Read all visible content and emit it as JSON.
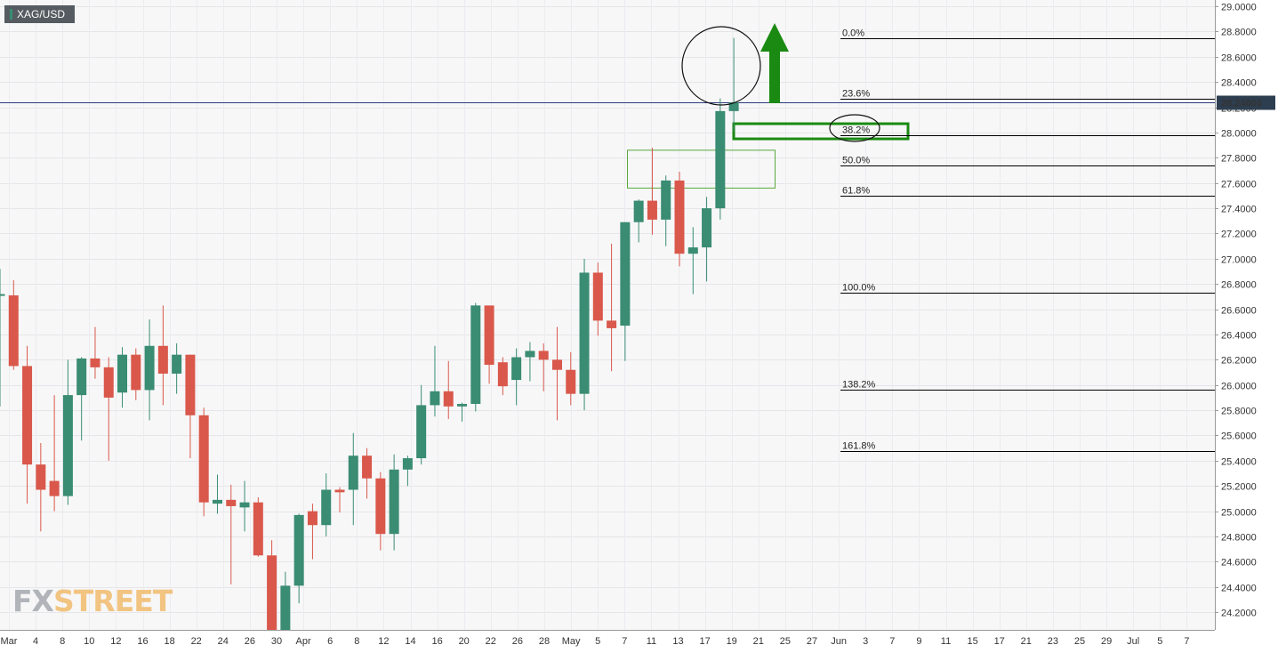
{
  "symbol": "XAG/USD",
  "last_price_label": "28.24000",
  "logo": {
    "part1": "FX",
    "part2": "STREET"
  },
  "colors": {
    "up": "#3a8c72",
    "down": "#d9584b",
    "fib_line": "#000000",
    "price_line": "#2c3c7a",
    "price_label_bg": "#2d3e50",
    "annotation_green": "#1a8a12",
    "zone_green": "#5aa83c"
  },
  "chart_data": {
    "type": "candlestick",
    "ylim": [
      24.06,
      29.05
    ],
    "y_ticks": [
      "29.0000",
      "28.8000",
      "28.6000",
      "28.4000",
      "28.2000",
      "28.0000",
      "27.8000",
      "27.6000",
      "27.4000",
      "27.2000",
      "27.0000",
      "26.8000",
      "26.6000",
      "26.4000",
      "26.2000",
      "26.0000",
      "25.8000",
      "25.6000",
      "25.4000",
      "25.2000",
      "25.0000",
      "24.8000",
      "24.6000",
      "24.4000",
      "24.2000"
    ],
    "x_ticks": [
      "Mar",
      "4",
      "8",
      "10",
      "12",
      "16",
      "18",
      "22",
      "24",
      "26",
      "30",
      "Apr",
      "6",
      "8",
      "12",
      "14",
      "16",
      "20",
      "22",
      "26",
      "28",
      "May",
      "5",
      "7",
      "11",
      "13",
      "17",
      "19",
      "21",
      "25",
      "27",
      "Jun",
      "3",
      "7",
      "9",
      "11",
      "15",
      "17",
      "21",
      "23",
      "25",
      "29",
      "Jul",
      "5",
      "7"
    ],
    "fib_levels": [
      {
        "label": "0.0%",
        "price": 28.75
      },
      {
        "label": "23.6%",
        "price": 28.27
      },
      {
        "label": "38.2%",
        "price": 27.98
      },
      {
        "label": "50.0%",
        "price": 27.74
      },
      {
        "label": "61.8%",
        "price": 27.5
      },
      {
        "label": "100.0%",
        "price": 26.73
      },
      {
        "label": "138.2%",
        "price": 25.96
      },
      {
        "label": "161.8%",
        "price": 25.48
      }
    ],
    "last_price": 28.24,
    "candles": [
      {
        "o": 26.72,
        "h": 26.92,
        "l": 25.83,
        "c": 26.72
      },
      {
        "o": 26.71,
        "h": 26.83,
        "l": 26.12,
        "c": 26.15
      },
      {
        "o": 26.15,
        "h": 26.31,
        "l": 25.06,
        "c": 25.37
      },
      {
        "o": 25.37,
        "h": 25.54,
        "l": 24.84,
        "c": 25.17
      },
      {
        "o": 25.24,
        "h": 25.92,
        "l": 25.0,
        "c": 25.12
      },
      {
        "o": 25.12,
        "h": 26.2,
        "l": 25.05,
        "c": 25.92
      },
      {
        "o": 25.92,
        "h": 26.22,
        "l": 25.56,
        "c": 26.21
      },
      {
        "o": 26.21,
        "h": 26.46,
        "l": 26.05,
        "c": 26.14
      },
      {
        "o": 26.14,
        "h": 26.22,
        "l": 25.4,
        "c": 25.9
      },
      {
        "o": 25.94,
        "h": 26.3,
        "l": 25.82,
        "c": 26.24
      },
      {
        "o": 26.24,
        "h": 26.29,
        "l": 25.88,
        "c": 25.96
      },
      {
        "o": 25.96,
        "h": 26.52,
        "l": 25.72,
        "c": 26.31
      },
      {
        "o": 26.31,
        "h": 26.63,
        "l": 25.84,
        "c": 26.09
      },
      {
        "o": 26.09,
        "h": 26.33,
        "l": 25.93,
        "c": 26.24
      },
      {
        "o": 26.24,
        "h": 26.24,
        "l": 25.42,
        "c": 25.76
      },
      {
        "o": 25.76,
        "h": 25.82,
        "l": 24.96,
        "c": 25.07
      },
      {
        "o": 25.06,
        "h": 25.29,
        "l": 24.98,
        "c": 25.09
      },
      {
        "o": 25.09,
        "h": 25.21,
        "l": 24.42,
        "c": 25.04
      },
      {
        "o": 25.03,
        "h": 25.24,
        "l": 24.84,
        "c": 25.07
      },
      {
        "o": 25.07,
        "h": 25.11,
        "l": 24.64,
        "c": 24.65
      },
      {
        "o": 24.65,
        "h": 24.77,
        "l": 24.0,
        "c": 24.0
      },
      {
        "o": 24.0,
        "h": 24.52,
        "l": 24.0,
        "c": 24.41
      },
      {
        "o": 24.41,
        "h": 24.98,
        "l": 24.27,
        "c": 24.97
      },
      {
        "o": 25.0,
        "h": 25.06,
        "l": 24.62,
        "c": 24.89
      },
      {
        "o": 24.89,
        "h": 25.3,
        "l": 24.8,
        "c": 25.17
      },
      {
        "o": 25.17,
        "h": 25.19,
        "l": 24.99,
        "c": 25.15
      },
      {
        "o": 25.17,
        "h": 25.62,
        "l": 24.89,
        "c": 25.44
      },
      {
        "o": 25.44,
        "h": 25.5,
        "l": 25.1,
        "c": 25.26
      },
      {
        "o": 25.26,
        "h": 25.31,
        "l": 24.69,
        "c": 24.82
      },
      {
        "o": 24.82,
        "h": 25.45,
        "l": 24.69,
        "c": 25.33
      },
      {
        "o": 25.33,
        "h": 25.44,
        "l": 25.2,
        "c": 25.42
      },
      {
        "o": 25.42,
        "h": 26.0,
        "l": 25.37,
        "c": 25.84
      },
      {
        "o": 25.84,
        "h": 26.31,
        "l": 25.75,
        "c": 25.95
      },
      {
        "o": 25.95,
        "h": 26.19,
        "l": 25.73,
        "c": 25.83
      },
      {
        "o": 25.83,
        "h": 25.86,
        "l": 25.71,
        "c": 25.85
      },
      {
        "o": 25.85,
        "h": 26.65,
        "l": 25.79,
        "c": 26.63
      },
      {
        "o": 26.63,
        "h": 26.6,
        "l": 26.01,
        "c": 26.16
      },
      {
        "o": 26.18,
        "h": 26.22,
        "l": 25.92,
        "c": 25.99
      },
      {
        "o": 26.04,
        "h": 26.29,
        "l": 25.84,
        "c": 26.22
      },
      {
        "o": 26.22,
        "h": 26.34,
        "l": 26.03,
        "c": 26.27
      },
      {
        "o": 26.27,
        "h": 26.33,
        "l": 25.95,
        "c": 26.2
      },
      {
        "o": 26.2,
        "h": 26.46,
        "l": 25.72,
        "c": 26.12
      },
      {
        "o": 26.12,
        "h": 26.26,
        "l": 25.84,
        "c": 25.93
      },
      {
        "o": 25.93,
        "h": 27.0,
        "l": 25.8,
        "c": 26.89
      },
      {
        "o": 26.89,
        "h": 26.97,
        "l": 26.39,
        "c": 26.51
      },
      {
        "o": 26.51,
        "h": 27.12,
        "l": 26.11,
        "c": 26.45
      },
      {
        "o": 26.47,
        "h": 27.29,
        "l": 26.19,
        "c": 27.29
      },
      {
        "o": 27.29,
        "h": 27.47,
        "l": 27.13,
        "c": 27.46
      },
      {
        "o": 27.46,
        "h": 27.88,
        "l": 27.19,
        "c": 27.31
      },
      {
        "o": 27.31,
        "h": 27.66,
        "l": 27.1,
        "c": 27.62
      },
      {
        "o": 27.62,
        "h": 27.69,
        "l": 26.94,
        "c": 27.04
      },
      {
        "o": 27.04,
        "h": 27.25,
        "l": 26.72,
        "c": 27.09
      },
      {
        "o": 27.09,
        "h": 27.49,
        "l": 26.82,
        "c": 27.4
      },
      {
        "o": 27.4,
        "h": 28.27,
        "l": 27.31,
        "c": 28.17
      },
      {
        "o": 28.17,
        "h": 28.75,
        "l": 28.01,
        "c": 28.24
      }
    ]
  }
}
